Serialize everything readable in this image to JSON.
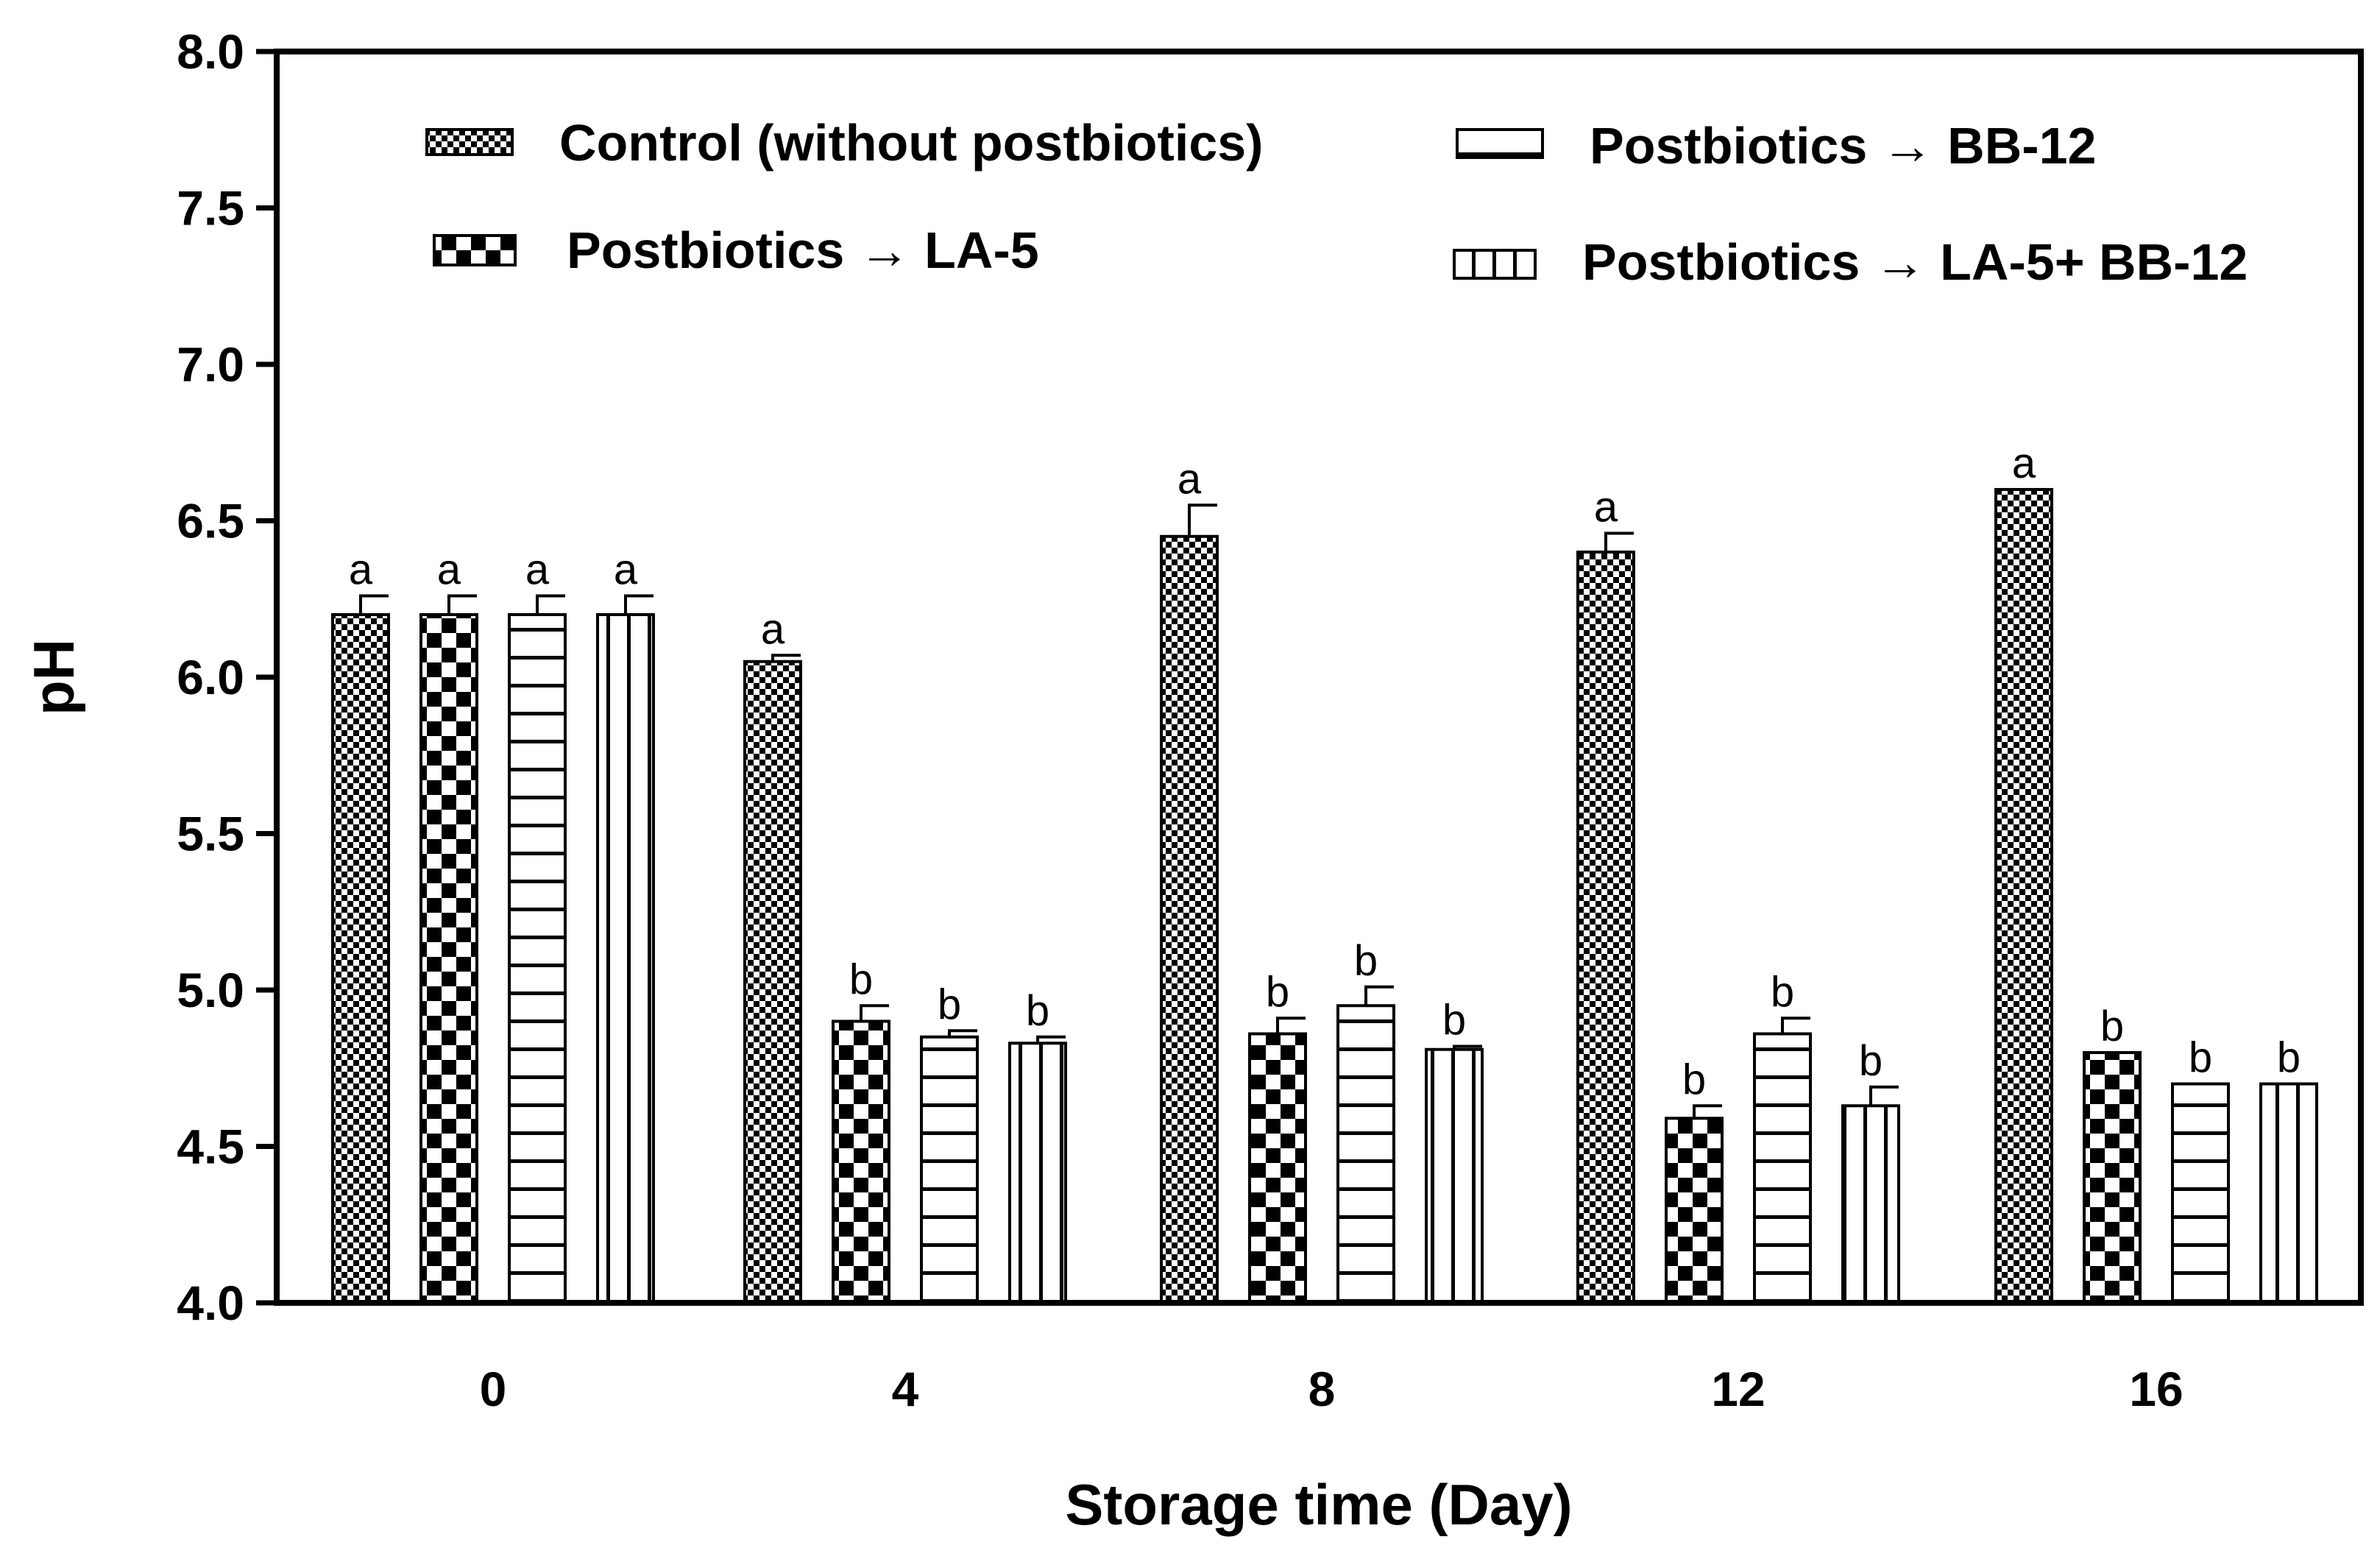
{
  "chart_data": {
    "type": "bar",
    "title": "",
    "xlabel": "Storage time (Day)",
    "ylabel": "pH",
    "ylim": [
      4.0,
      8.0
    ],
    "yticks": [
      "4.0",
      "4.5",
      "5.0",
      "5.5",
      "6.0",
      "6.5",
      "7.0",
      "7.5",
      "8.0"
    ],
    "categories": [
      "0",
      "4",
      "8",
      "12",
      "16"
    ],
    "grid": false,
    "legend_placement": "top",
    "series": [
      {
        "name": "Control (without postbiotics)",
        "pattern": "fine-checker",
        "values": [
          6.2,
          6.05,
          6.45,
          6.4,
          6.6
        ],
        "errors": [
          0.06,
          0.02,
          0.1,
          0.06,
          0.0
        ],
        "letters": [
          "a",
          "a",
          "a",
          "a",
          "a"
        ]
      },
      {
        "name": "Postbiotics → LA-5",
        "pattern": "coarse-checker",
        "values": [
          6.2,
          4.9,
          4.86,
          4.59,
          4.8
        ],
        "errors": [
          0.06,
          0.05,
          0.05,
          0.04,
          0.0
        ],
        "letters": [
          "a",
          "b",
          "b",
          "b",
          "b"
        ]
      },
      {
        "name": "Postbiotics → BB-12",
        "pattern": "horizontal-lines",
        "values": [
          6.2,
          4.85,
          4.95,
          4.86,
          4.7
        ],
        "errors": [
          0.06,
          0.02,
          0.06,
          0.05,
          0.0
        ],
        "letters": [
          "a",
          "b",
          "b",
          "b",
          "b"
        ]
      },
      {
        "name": "Postbiotics → LA-5+ BB-12",
        "pattern": "vertical-lines",
        "values": [
          6.2,
          4.83,
          4.81,
          4.63,
          4.7
        ],
        "errors": [
          0.06,
          0.02,
          0.01,
          0.06,
          0.0
        ],
        "letters": [
          "a",
          "b",
          "b",
          "b",
          "b"
        ]
      }
    ]
  }
}
